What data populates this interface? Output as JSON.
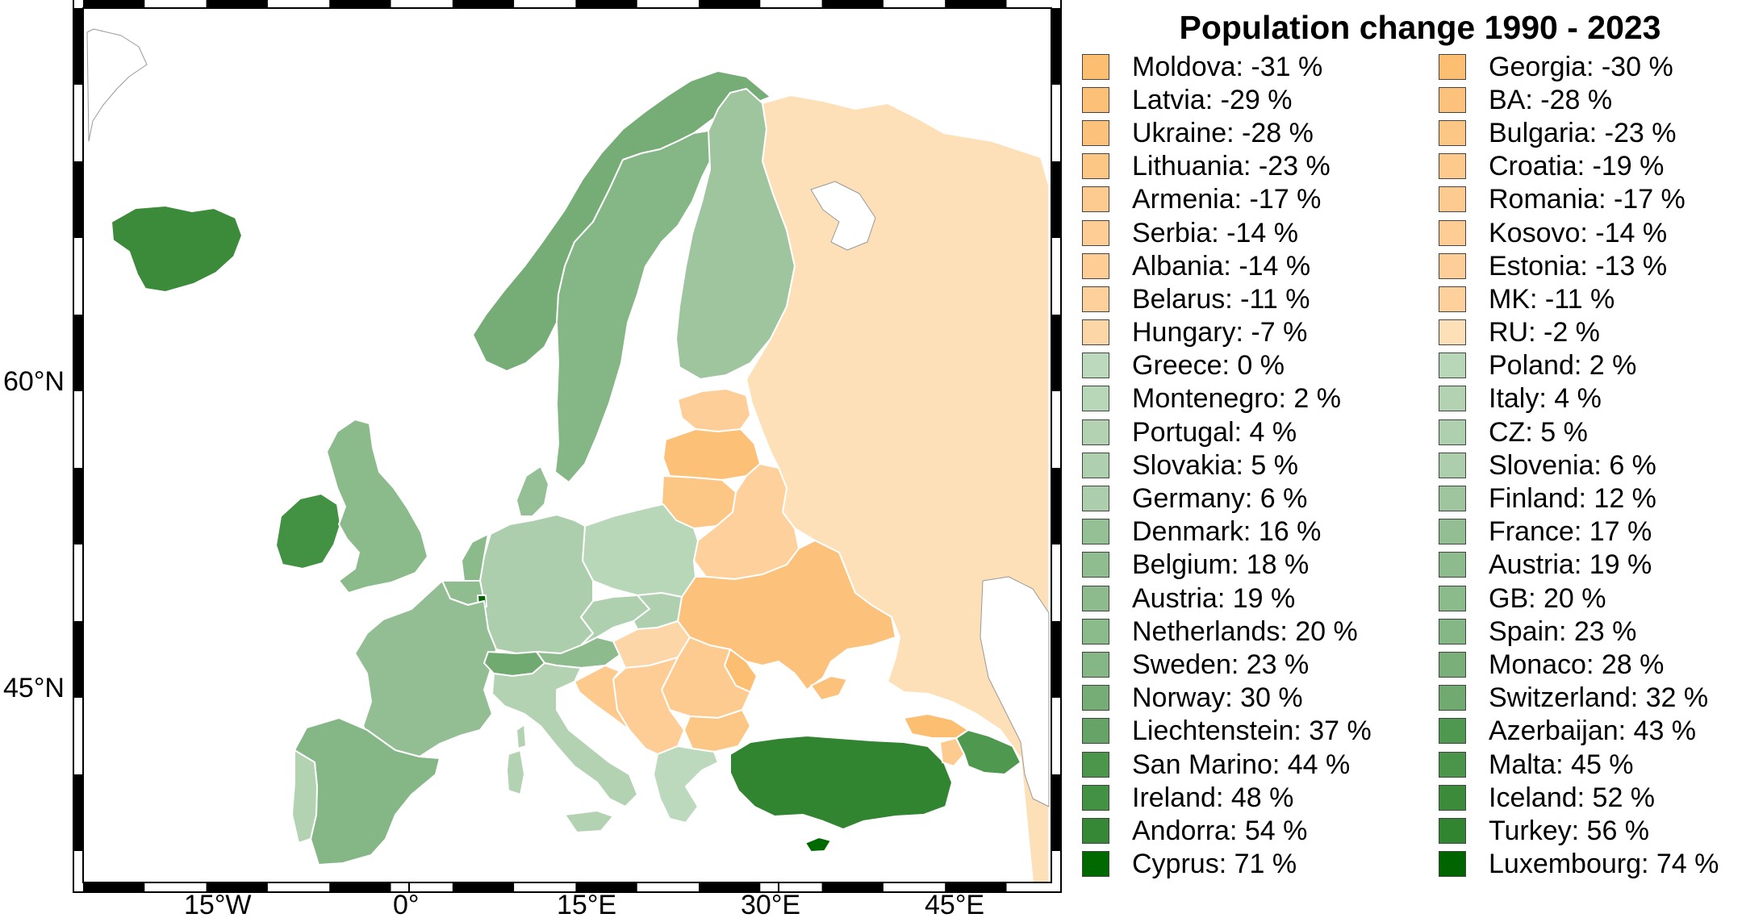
{
  "title": "Population change 1990 - 2023",
  "x_axis_ticks": [
    "15°W",
    "0°",
    "15°E",
    "30°E",
    "45°E"
  ],
  "y_axis_ticks": [
    "60°N",
    "45°N"
  ],
  "colors": {
    "land_outside": "#ffffff",
    "water": "#ffffff",
    "border": "#ffffff",
    "frame": "#000000",
    "decline_light": "#fde0b8",
    "decline_dark": "#fcbf72",
    "growth_light": "#b8d6b8",
    "growth_dark": "#006400"
  },
  "legend": {
    "items": [
      {
        "label": "Moldova: -31 %",
        "color": "#fcbf72"
      },
      {
        "label": "Georgia: -30 %",
        "color": "#fcbf72"
      },
      {
        "label": "Latvia: -29 %",
        "color": "#fcc077"
      },
      {
        "label": "BA: -28 %",
        "color": "#fcc17a"
      },
      {
        "label": "Ukraine: -28 %",
        "color": "#fcc17a"
      },
      {
        "label": "Bulgaria: -23 %",
        "color": "#fcc684"
      },
      {
        "label": "Lithuania: -23 %",
        "color": "#fcc684"
      },
      {
        "label": "Croatia: -19 %",
        "color": "#fdc98c"
      },
      {
        "label": "Armenia: -17 %",
        "color": "#fdcb90"
      },
      {
        "label": "Romania: -17 %",
        "color": "#fdcb90"
      },
      {
        "label": "Serbia: -14 %",
        "color": "#fdcd95"
      },
      {
        "label": "Kosovo: -14 %",
        "color": "#fdcd95"
      },
      {
        "label": "Albania: -14 %",
        "color": "#fdcd95"
      },
      {
        "label": "Estonia: -13 %",
        "color": "#fdce97"
      },
      {
        "label": "Belarus: -11 %",
        "color": "#fdd09c"
      },
      {
        "label": "MK: -11 %",
        "color": "#fdd09c"
      },
      {
        "label": "Hungary: -7 %",
        "color": "#fdd6a8"
      },
      {
        "label": "RU: -2 %",
        "color": "#fde0b8"
      },
      {
        "label": "Greece: 0 %",
        "color": "#bdd9bd"
      },
      {
        "label": "Poland: 2 %",
        "color": "#b8d6b8"
      },
      {
        "label": "Montenegro: 2 %",
        "color": "#b8d6b8"
      },
      {
        "label": "Italy: 4 %",
        "color": "#b2d2b2"
      },
      {
        "label": "Portugal: 4 %",
        "color": "#b2d2b2"
      },
      {
        "label": "CZ: 5 %",
        "color": "#afd0af"
      },
      {
        "label": "Slovakia: 5 %",
        "color": "#afd0af"
      },
      {
        "label": "Slovenia: 6 %",
        "color": "#acceac"
      },
      {
        "label": "Germany: 6 %",
        "color": "#acceac"
      },
      {
        "label": "Finland: 12 %",
        "color": "#9fc59f"
      },
      {
        "label": "Denmark: 16 %",
        "color": "#95c095"
      },
      {
        "label": "France: 17 %",
        "color": "#93be93"
      },
      {
        "label": "Belgium: 18 %",
        "color": "#90bd90"
      },
      {
        "label": "Austria: 19 %",
        "color": "#8dbb8d"
      },
      {
        "label": "Austria: 19 %",
        "color": "#8dbb8d"
      },
      {
        "label": "GB: 20 %",
        "color": "#8bba8b"
      },
      {
        "label": "Netherlands: 20 %",
        "color": "#8bba8b"
      },
      {
        "label": "Spain: 23 %",
        "color": "#85b685"
      },
      {
        "label": "Sweden: 23 %",
        "color": "#85b685"
      },
      {
        "label": "Monaco: 28 %",
        "color": "#7aaf7a"
      },
      {
        "label": "Norway: 30 %",
        "color": "#76ad76"
      },
      {
        "label": "Switzerland: 32 %",
        "color": "#71aa71"
      },
      {
        "label": "Liechtenstein: 37 %",
        "color": "#66a366"
      },
      {
        "label": "Azerbaijan: 43 %",
        "color": "#4f984f"
      },
      {
        "label": "San Marino: 44 %",
        "color": "#4c964c"
      },
      {
        "label": "Malta: 45 %",
        "color": "#4a954a"
      },
      {
        "label": "Ireland: 48 %",
        "color": "#439143"
      },
      {
        "label": "Iceland: 52 %",
        "color": "#3b8b3b"
      },
      {
        "label": "Andorra: 54 %",
        "color": "#368836"
      },
      {
        "label": "Turkey: 56 %",
        "color": "#318531"
      },
      {
        "label": "Cyprus: 71 %",
        "color": "#006a00"
      },
      {
        "label": "Luxembourg: 74 %",
        "color": "#006400"
      }
    ]
  },
  "regions": {
    "iceland": "#3b8b3b",
    "ireland": "#439143",
    "great_britain": "#8bba8b",
    "norway": "#76ad76",
    "sweden": "#85b685",
    "finland": "#9fc59f",
    "russia": "#fde0b8",
    "estonia": "#fdce97",
    "latvia": "#fcc077",
    "lithuania": "#fcc684",
    "belarus": "#fdd09c",
    "ukraine": "#fcc17a",
    "moldova": "#fcbf72",
    "poland": "#b8d6b8",
    "germany": "#acceac",
    "denmark": "#95c095",
    "netherlands": "#8bba8b",
    "belgium": "#90bd90",
    "luxembourg": "#006400",
    "france": "#93be93",
    "spain": "#85b685",
    "portugal": "#b2d2b2",
    "switzerland": "#71aa71",
    "austria": "#8dbb8d",
    "italy": "#b2d2b2",
    "czechia": "#afd0af",
    "slovakia": "#afd0af",
    "hungary": "#fdd6a8",
    "romania": "#fdcb90",
    "bulgaria": "#fcc684",
    "balkans": "#fdcd95",
    "croatia": "#fdc98c",
    "greece": "#bdd9bd",
    "turkey": "#318531",
    "cyprus": "#006a00",
    "georgia": "#fcbf72",
    "armenia": "#fdcb90",
    "azerbaijan": "#4f984f",
    "corsica_sardinia_sicily": "#b2d2b2"
  }
}
